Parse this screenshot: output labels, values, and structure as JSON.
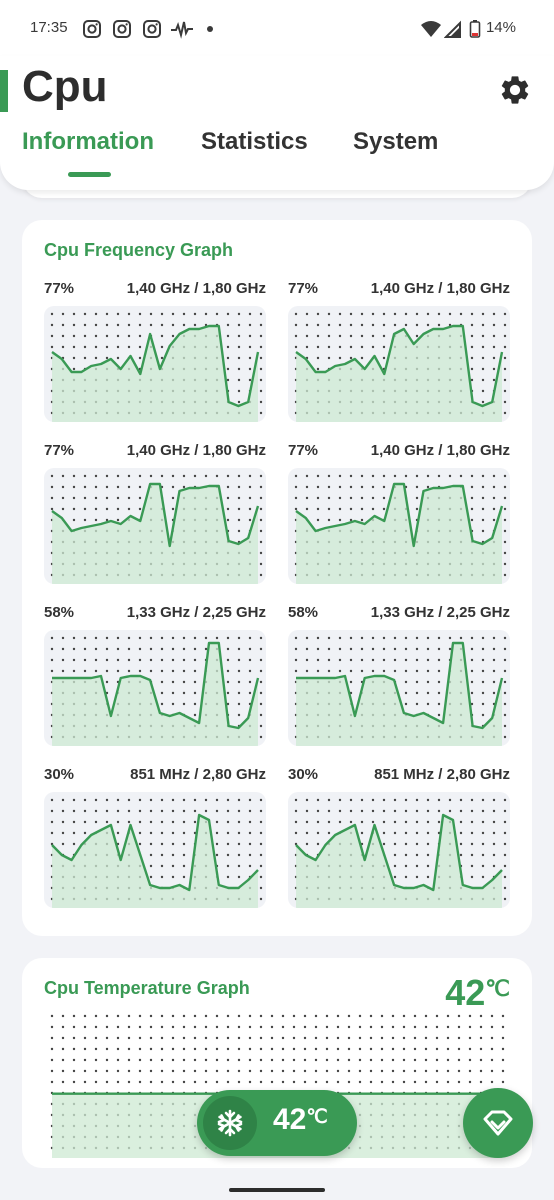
{
  "status_bar": {
    "time": "17:35",
    "battery": "14%",
    "icons": [
      "instagram-icon",
      "instagram-icon",
      "instagram-icon",
      "pulse-icon",
      "dot-icon",
      "wifi-icon",
      "signal-icon",
      "battery-icon"
    ]
  },
  "header": {
    "title": "Cpu",
    "settings_icon": "gear-icon",
    "tabs": [
      {
        "label": "Information",
        "active": true
      },
      {
        "label": "Statistics",
        "active": false
      },
      {
        "label": "System",
        "active": false
      }
    ]
  },
  "colors": {
    "accent": "#3a9a55",
    "fill": "#cde9d3",
    "graph_bg": "#f0f2f6"
  },
  "frequency_card": {
    "title": "Cpu Frequency Graph",
    "cores": [
      {
        "percent": "77%",
        "freq": "1,40 GHz / 1,80 GHz",
        "series": [
          0.62,
          0.55,
          0.42,
          0.42,
          0.48,
          0.5,
          0.55,
          0.45,
          0.58,
          0.4,
          0.8,
          0.45,
          0.68,
          0.8,
          0.85,
          0.85,
          0.88,
          0.88,
          0.12,
          0.08,
          0.12,
          0.62
        ]
      },
      {
        "percent": "77%",
        "freq": "1,40 GHz / 1,80 GHz",
        "series": [
          0.62,
          0.55,
          0.42,
          0.42,
          0.48,
          0.5,
          0.55,
          0.45,
          0.58,
          0.4,
          0.8,
          0.85,
          0.7,
          0.8,
          0.85,
          0.85,
          0.88,
          0.88,
          0.12,
          0.08,
          0.12,
          0.62
        ]
      },
      {
        "percent": "77%",
        "freq": "1,40 GHz / 1,80 GHz",
        "series": [
          0.65,
          0.58,
          0.45,
          0.48,
          0.5,
          0.52,
          0.55,
          0.52,
          0.6,
          0.55,
          0.92,
          0.92,
          0.3,
          0.85,
          0.88,
          0.88,
          0.9,
          0.9,
          0.35,
          0.32,
          0.38,
          0.7
        ]
      },
      {
        "percent": "77%",
        "freq": "1,40 GHz / 1,80 GHz",
        "series": [
          0.65,
          0.58,
          0.45,
          0.48,
          0.5,
          0.52,
          0.55,
          0.52,
          0.6,
          0.55,
          0.92,
          0.92,
          0.3,
          0.85,
          0.88,
          0.88,
          0.9,
          0.9,
          0.35,
          0.32,
          0.38,
          0.7
        ]
      },
      {
        "percent": "58%",
        "freq": "1,33 GHz / 2,25 GHz",
        "series": [
          0.6,
          0.6,
          0.6,
          0.6,
          0.6,
          0.62,
          0.22,
          0.6,
          0.62,
          0.62,
          0.58,
          0.25,
          0.22,
          0.25,
          0.2,
          0.15,
          0.95,
          0.95,
          0.12,
          0.1,
          0.2,
          0.6
        ]
      },
      {
        "percent": "58%",
        "freq": "1,33 GHz / 2,25 GHz",
        "series": [
          0.6,
          0.6,
          0.6,
          0.6,
          0.6,
          0.62,
          0.22,
          0.6,
          0.62,
          0.62,
          0.58,
          0.25,
          0.22,
          0.25,
          0.2,
          0.15,
          0.95,
          0.95,
          0.12,
          0.1,
          0.2,
          0.6
        ]
      },
      {
        "percent": "30%",
        "freq": "851 MHz / 2,80 GHz",
        "series": [
          0.55,
          0.45,
          0.4,
          0.55,
          0.65,
          0.7,
          0.75,
          0.4,
          0.75,
          0.45,
          0.15,
          0.12,
          0.12,
          0.15,
          0.1,
          0.85,
          0.8,
          0.15,
          0.12,
          0.12,
          0.2,
          0.3
        ]
      },
      {
        "percent": "30%",
        "freq": "851 MHz / 2,80 GHz",
        "series": [
          0.55,
          0.45,
          0.4,
          0.55,
          0.65,
          0.7,
          0.75,
          0.4,
          0.75,
          0.45,
          0.15,
          0.12,
          0.12,
          0.15,
          0.1,
          0.85,
          0.8,
          0.15,
          0.12,
          0.12,
          0.2,
          0.3
        ]
      }
    ]
  },
  "temperature_card": {
    "title": "Cpu Temperature Graph",
    "value": "42",
    "unit": "℃",
    "series": [
      0.42,
      0.42,
      0.42,
      0.42,
      0.42,
      0.42,
      0.42,
      0.42,
      0.42,
      0.42,
      0.42,
      0.42,
      0.42,
      0.42,
      0.42,
      0.42,
      0.42,
      0.42
    ]
  },
  "floating": {
    "temp_value": "42",
    "temp_unit": "℃",
    "pill_icon": "snowflake-icon",
    "fab_icon": "diamond-icon"
  }
}
